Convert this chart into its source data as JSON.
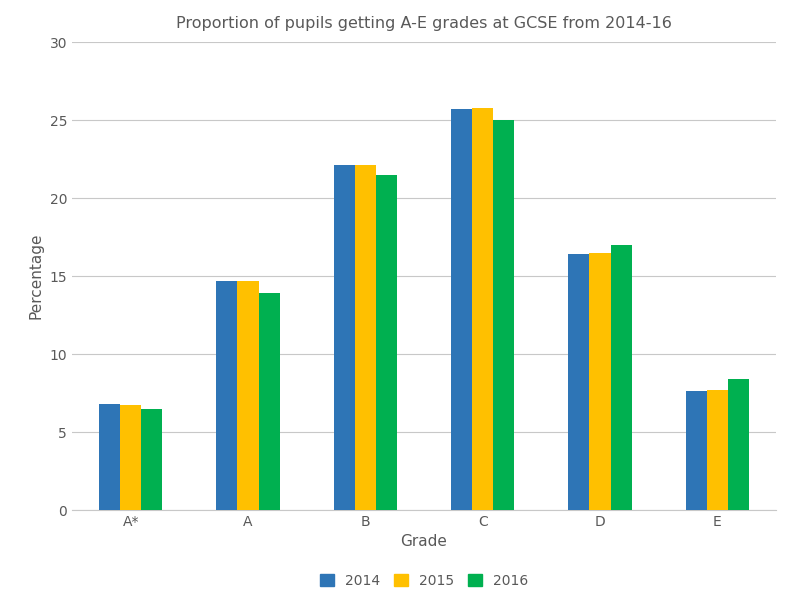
{
  "title": "Proportion of pupils getting A-E grades at GCSE from 2014-16",
  "xlabel": "Grade",
  "ylabel": "Percentage",
  "categories": [
    "A*",
    "A",
    "B",
    "C",
    "D",
    "E"
  ],
  "years": [
    "2014",
    "2015",
    "2016"
  ],
  "values": {
    "2014": [
      6.8,
      14.7,
      22.1,
      25.7,
      16.4,
      7.6
    ],
    "2015": [
      6.7,
      14.7,
      22.1,
      25.8,
      16.5,
      7.7
    ],
    "2016": [
      6.5,
      13.9,
      21.5,
      25.0,
      17.0,
      8.4
    ]
  },
  "colors": {
    "2014": "#2E75B6",
    "2015": "#FFC000",
    "2016": "#00B050"
  },
  "ylim": [
    0,
    30
  ],
  "yticks": [
    0,
    5,
    10,
    15,
    20,
    25,
    30
  ],
  "bar_width": 0.18,
  "background_color": "#FFFFFF",
  "grid_color": "#C8C8C8",
  "title_fontsize": 11.5,
  "axis_label_fontsize": 11,
  "tick_fontsize": 10,
  "legend_fontsize": 10
}
